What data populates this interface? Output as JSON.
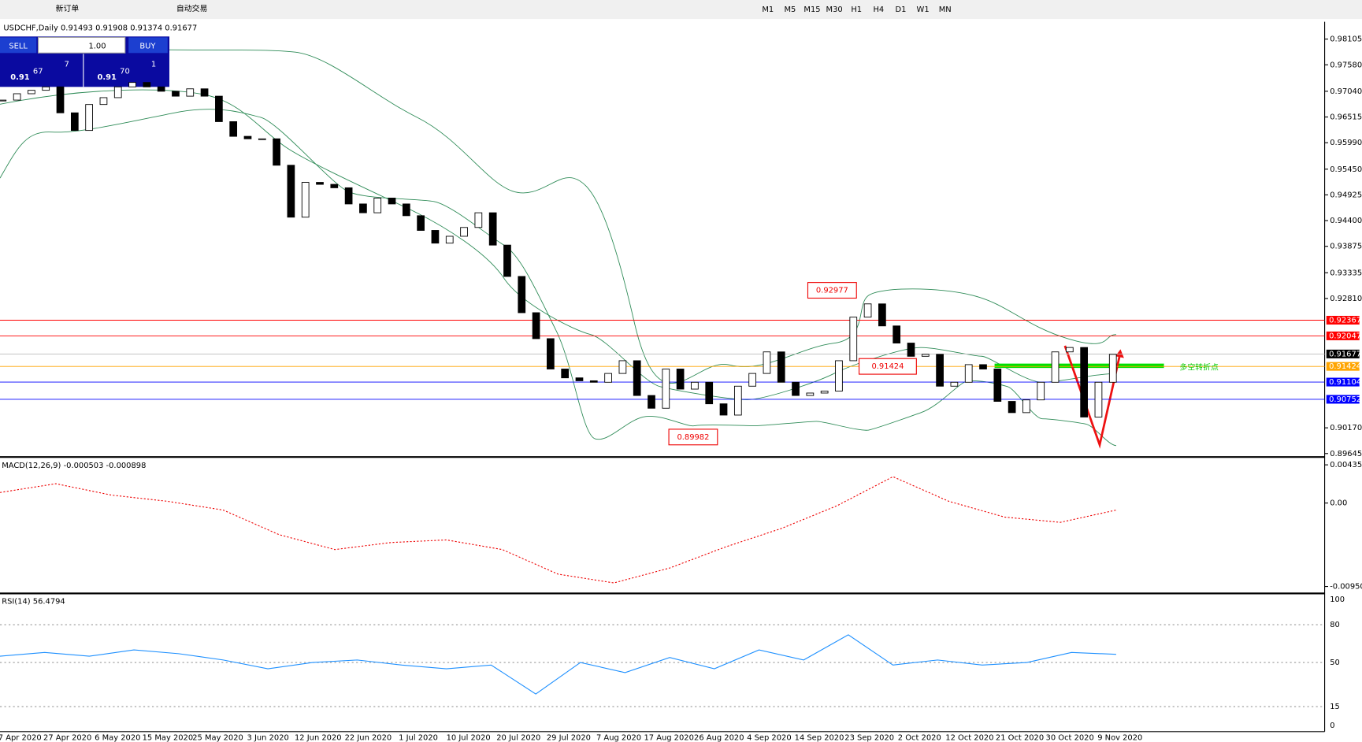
{
  "toolbar": {
    "new_order": "新订单",
    "auto_trading": "自动交易",
    "timeframes": [
      "M1",
      "M5",
      "M15",
      "M30",
      "H1",
      "H4",
      "D1",
      "W1",
      "MN"
    ]
  },
  "trade_panel": {
    "sell": "SELL",
    "buy": "BUY",
    "lot": "1.00",
    "bid_prefix": "0.91",
    "bid_big": "67",
    "bid_small": "7",
    "ask_prefix": "0.91",
    "ask_big": "70",
    "ask_small": "1"
  },
  "chart": {
    "header": "USDCHF,Daily  0.91493 0.91908 0.91374 0.91677",
    "price_ticks": [
      {
        "value": 0.98105,
        "label": "0.98105"
      },
      {
        "value": 0.9758,
        "label": "0.97580"
      },
      {
        "value": 0.9704,
        "label": "0.97040"
      },
      {
        "value": 0.96515,
        "label": "0.96515"
      },
      {
        "value": 0.9599,
        "label": "0.95990"
      },
      {
        "value": 0.9545,
        "label": "0.95450"
      },
      {
        "value": 0.94925,
        "label": "0.94925"
      },
      {
        "value": 0.944,
        "label": "0.94400"
      },
      {
        "value": 0.93875,
        "label": "0.93875"
      },
      {
        "value": 0.93335,
        "label": "0.93335"
      },
      {
        "value": 0.9281,
        "label": "0.92810"
      },
      {
        "value": 0.9017,
        "label": "0.90170"
      },
      {
        "value": 0.89645,
        "label": "0.89645"
      }
    ],
    "levels": [
      {
        "price": 0.92367,
        "color": "#ff0000"
      },
      {
        "price": 0.92047,
        "color": "#ff0000"
      },
      {
        "price": 0.91677,
        "color": "#000000"
      },
      {
        "price": 0.91424,
        "color": "#ffa500"
      },
      {
        "price": 0.91104,
        "color": "#0000ff"
      },
      {
        "price": 0.90752,
        "color": "#0000ff"
      }
    ],
    "annotations": [
      {
        "price": 0.92977
      },
      {
        "price": 0.91424
      },
      {
        "price": 0.89982
      }
    ],
    "note": "多空转折点",
    "closes": [
      0.9686,
      0.9699,
      0.9706,
      0.9713,
      0.966,
      0.9624,
      0.9677,
      0.9691,
      0.9713,
      0.9722,
      0.9713,
      0.9704,
      0.9694,
      0.9709,
      0.9694,
      0.9642,
      0.9612,
      0.9607,
      0.9607,
      0.9553,
      0.9447,
      0.9518,
      0.9514,
      0.9507,
      0.9474,
      0.9456,
      0.9486,
      0.9474,
      0.945,
      0.942,
      0.9394,
      0.9408,
      0.9426,
      0.9456,
      0.939,
      0.9326,
      0.9252,
      0.9199,
      0.9137,
      0.9119,
      0.9113,
      0.911,
      0.9128,
      0.9154,
      0.9083,
      0.9057,
      0.9137,
      0.9096,
      0.911,
      0.9066,
      0.9043,
      0.9102,
      0.9128,
      0.9172,
      0.911,
      0.9083,
      0.9088,
      0.9092,
      0.9154,
      0.9243,
      0.927,
      0.9225,
      0.919,
      0.9163,
      0.9167,
      0.9102,
      0.911,
      0.9146,
      0.9137,
      0.9071,
      0.9048,
      0.9074,
      0.911,
      0.9172,
      0.9181,
      0.9039,
      0.911,
      0.9167
    ],
    "dates": [
      "17 Apr 2020",
      "27 Apr 2020",
      "6 May 2020",
      "15 May 2020",
      "25 May 2020",
      "3 Jun 2020",
      "12 Jun 2020",
      "22 Jun 2020",
      "1 Jul 2020",
      "10 Jul 2020",
      "20 Jul 2020",
      "29 Jul 2020",
      "7 Aug 2020",
      "17 Aug 2020",
      "26 Aug 2020",
      "4 Sep 2020",
      "14 Sep 2020",
      "23 Sep 2020",
      "2 Oct 2020",
      "12 Oct 2020",
      "21 Oct 2020",
      "30 Oct 2020",
      "9 Nov 2020"
    ],
    "macd": {
      "label": "MACD(12,26,9) -0.000503 -0.000898",
      "ticks": [
        {
          "value": 0.004351,
          "label": "0.004351"
        },
        {
          "value": 0,
          "label": "0.00"
        },
        {
          "value": -0.009504,
          "label": "-0.009504"
        }
      ],
      "signal": [
        0.0012,
        0.0022,
        0.0009,
        0.0002,
        -0.0008,
        -0.0036,
        -0.0053,
        -0.0045,
        -0.0042,
        -0.0053,
        -0.0081,
        -0.0091,
        -0.0074,
        -0.005,
        -0.0029,
        -0.0003,
        0.003,
        0.0002,
        -0.0016,
        -0.0022,
        -0.0008
      ]
    },
    "rsi": {
      "label": "RSI(14) 56.4794",
      "ticks": [
        100,
        80,
        50,
        15,
        0
      ],
      "values": [
        55,
        58,
        55,
        60,
        57,
        52,
        45,
        50,
        52,
        48,
        45,
        48,
        25,
        50,
        42,
        54,
        45,
        60,
        52,
        72,
        48,
        52,
        48,
        50,
        58,
        56.4794
      ]
    }
  }
}
